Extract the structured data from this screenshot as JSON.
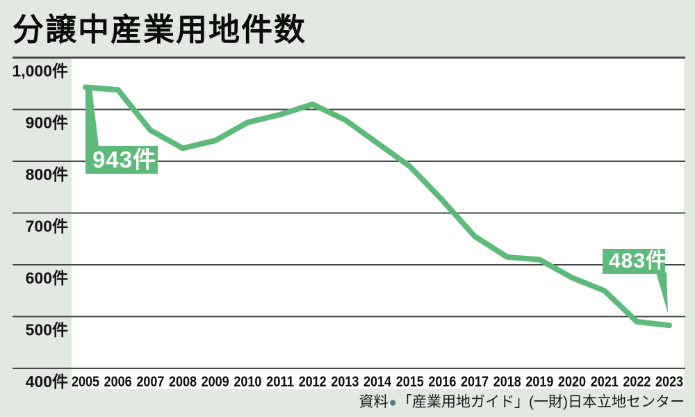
{
  "title": "分譲中産業用地件数",
  "source": {
    "prefix": "資料",
    "bullet": "●",
    "text": "「産業用地ガイド」(一財)日本立地センター"
  },
  "colors": {
    "background": "#e3e8e3",
    "plot_background": "#ffffff",
    "line_green": "#5eba7b",
    "badge_green": "#5eba7b",
    "grid_line": "#474747",
    "text": "#141414",
    "source_bullet": "#4a8180",
    "badge_text": "#ffffff"
  },
  "chart_data": {
    "type": "line",
    "title": "分譲中産業用地件数",
    "unit": "件",
    "categories": [
      "2005",
      "2006",
      "2007",
      "2008",
      "2009",
      "2010",
      "2011",
      "2012",
      "2013",
      "2014",
      "2015",
      "2016",
      "2017",
      "2018",
      "2019",
      "2020",
      "2021",
      "2022",
      "2023"
    ],
    "values": [
      943,
      938,
      860,
      825,
      840,
      875,
      890,
      910,
      880,
      835,
      790,
      725,
      655,
      615,
      610,
      575,
      550,
      490,
      483
    ],
    "ylim": [
      400,
      1000
    ],
    "ytick_interval": 100,
    "yticks": [
      {
        "value": 1000,
        "label": "1,000件"
      },
      {
        "value": 900,
        "label": "900件"
      },
      {
        "value": 800,
        "label": "800件"
      },
      {
        "value": 700,
        "label": "700件"
      },
      {
        "value": 600,
        "label": "600件"
      },
      {
        "value": 500,
        "label": "500件"
      },
      {
        "value": 400,
        "label": "400件"
      }
    ],
    "grid": true,
    "legend": "none",
    "annotations": [
      {
        "year": "2005",
        "value": 943,
        "label": "943件"
      },
      {
        "year": "2023",
        "value": 483,
        "label": "483件"
      }
    ]
  }
}
